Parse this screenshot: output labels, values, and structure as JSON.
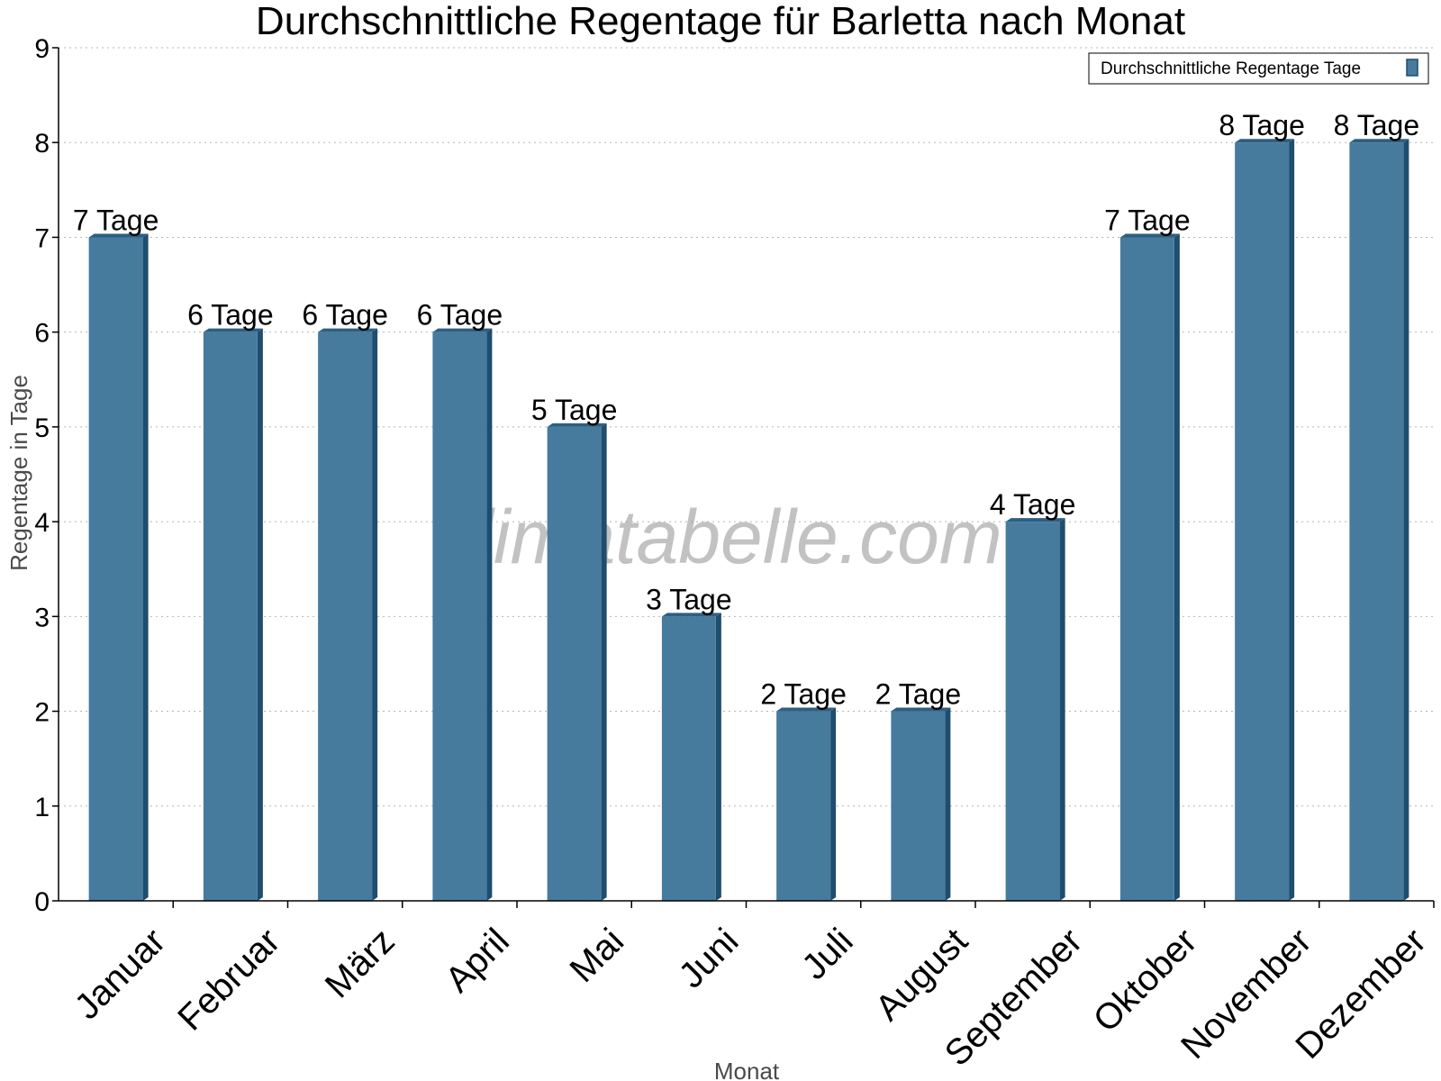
{
  "chart_data": {
    "type": "bar",
    "title": "Durchschnittliche Regentage für Barletta nach Monat",
    "xlabel": "Monat",
    "ylabel": "Regentage in Tage",
    "categories": [
      "Januar",
      "Februar",
      "März",
      "April",
      "Mai",
      "Juni",
      "Juli",
      "August",
      "September",
      "Oktober",
      "November",
      "Dezember"
    ],
    "series": [
      {
        "name": "Durchschnittliche Regentage Tage",
        "values": [
          7,
          6,
          6,
          6,
          5,
          3,
          2,
          2,
          4,
          7,
          8,
          8
        ],
        "labels": [
          "7 Tage",
          "6 Tage",
          "6 Tage",
          "6 Tage",
          "5 Tage",
          "3 Tage",
          "2 Tage",
          "2 Tage",
          "4 Tage",
          "7 Tage",
          "8 Tage",
          "8 Tage"
        ]
      }
    ],
    "ylim": [
      0,
      9
    ],
    "yticks": [
      "0",
      "1",
      "2",
      "3",
      "4",
      "5",
      "6",
      "7",
      "8",
      "9"
    ],
    "grid": true,
    "legend_position": "top-right",
    "colors": {
      "bar_face": "#467b9e",
      "bar_side": "#1f4d6e",
      "bar_top": "#2d5f82"
    }
  },
  "watermark": "klimatabelle.com"
}
